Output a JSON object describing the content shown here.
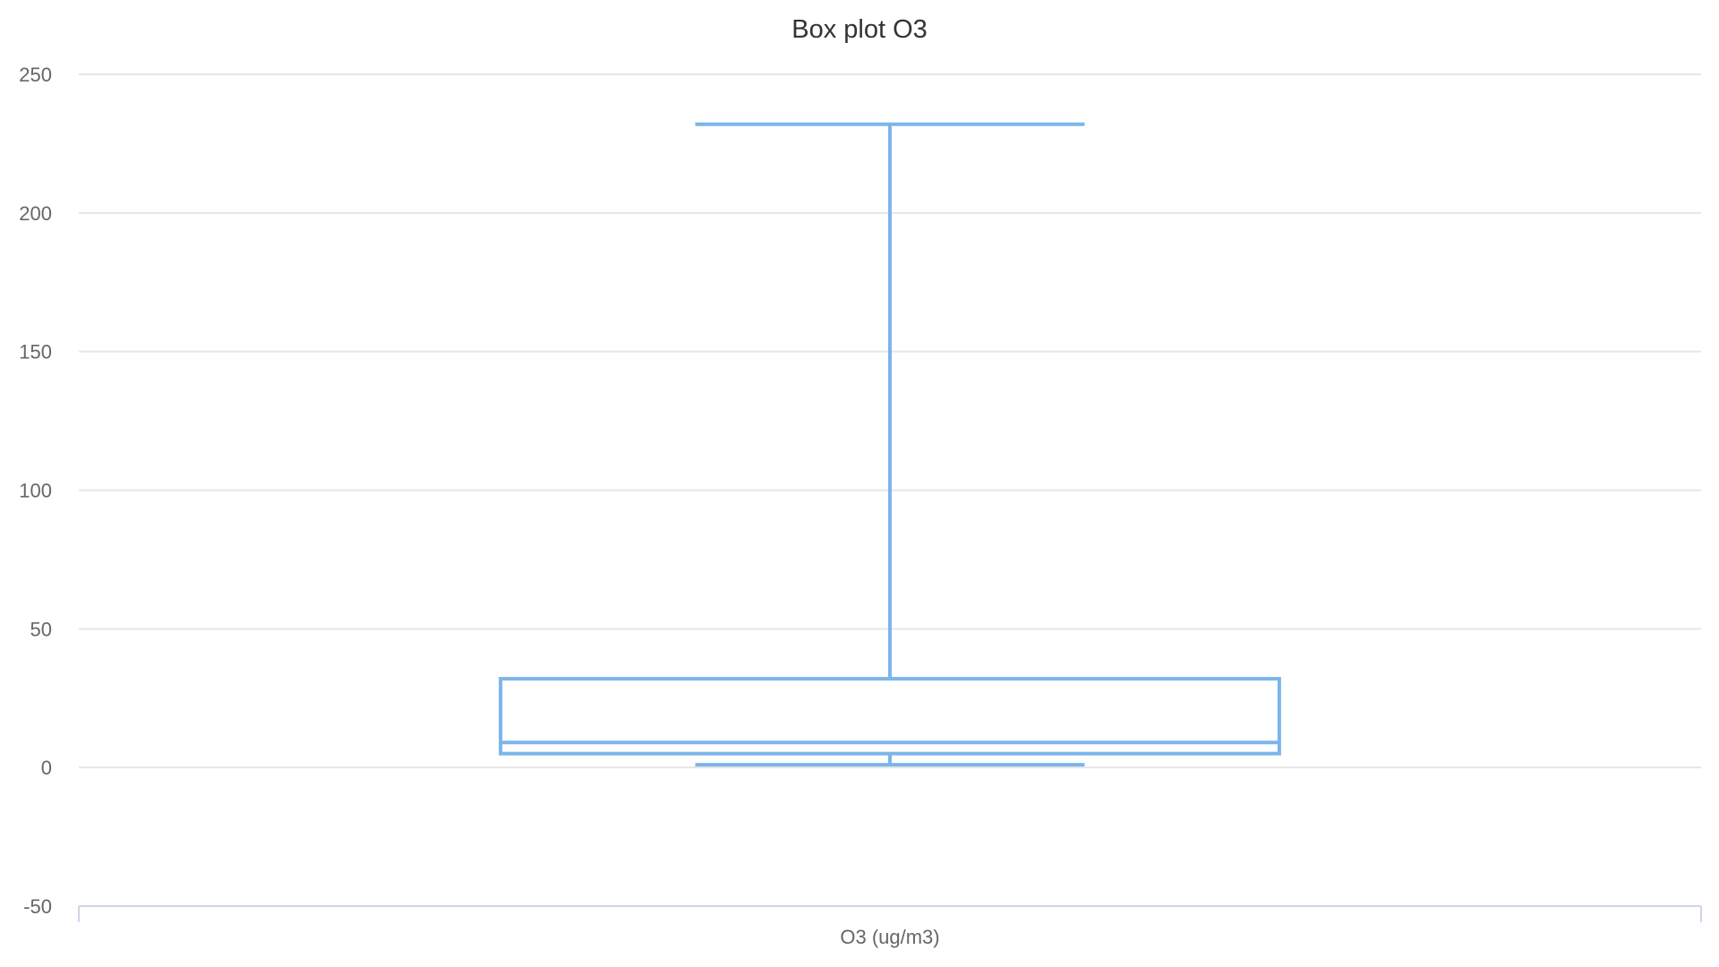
{
  "chart_data": {
    "type": "boxplot",
    "title": "Box plot O3",
    "xlabel": "",
    "ylabel": "",
    "categories": [
      "O3 (ug/m3)"
    ],
    "ylim": [
      -50,
      250
    ],
    "y_ticks": [
      -50,
      0,
      50,
      100,
      150,
      200,
      250
    ],
    "y_tick_labels": [
      "-50",
      "0",
      "50",
      "100",
      "150",
      "200",
      "250"
    ],
    "series": [
      {
        "boxes": [
          {
            "min": 1,
            "q1": 5,
            "median": 9,
            "q3": 32,
            "max": 232
          }
        ]
      }
    ],
    "grid": true,
    "legend": "none",
    "color": "#7cb5ec"
  }
}
